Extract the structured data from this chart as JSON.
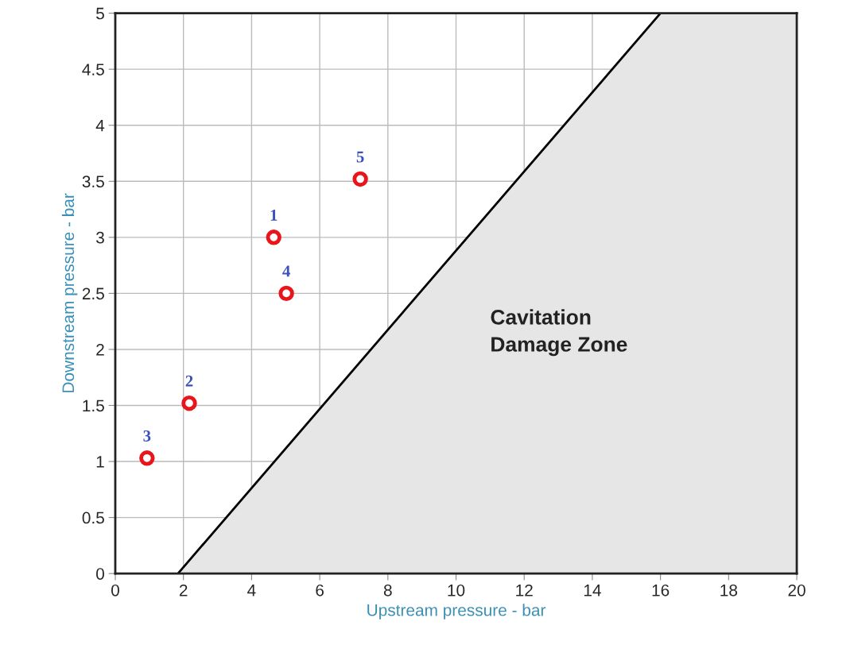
{
  "chart_data": {
    "type": "scatter",
    "xlabel": "Upstream pressure - bar",
    "ylabel": "Downstream pressure - bar",
    "series": [
      {
        "type": "area",
        "color": "#e6e6e6",
        "x": [
          1.84,
          16.0,
          20
        ],
        "values": [
          0,
          5,
          5
        ]
      },
      {
        "color": "#e8161b",
        "marker": "circle",
        "x": [
          4.65,
          2.17,
          0.93,
          5.02,
          7.19
        ],
        "values": [
          3.0,
          1.52,
          1.03,
          2.5,
          3.52
        ]
      }
    ],
    "annotations": [
      {
        "text": "1",
        "x": 4.65,
        "y": 3.0
      },
      {
        "text": "2",
        "x": 2.17,
        "y": 1.52
      },
      {
        "text": "3",
        "x": 0.93,
        "y": 1.03
      },
      {
        "text": "4",
        "x": 5.02,
        "y": 2.5
      },
      {
        "text": "5",
        "x": 7.19,
        "y": 3.52
      },
      "Cavitation\nDamage Zone"
    ],
    "xlim": [
      0,
      20
    ],
    "ylim": [
      0,
      5
    ],
    "xticks": [
      0,
      2,
      4,
      6,
      8,
      10,
      12,
      14,
      16,
      18,
      20
    ],
    "yticks": [
      0,
      0.5,
      1,
      1.5,
      2,
      2.5,
      3,
      3.5,
      4,
      4.5,
      5
    ],
    "grid": true
  }
}
